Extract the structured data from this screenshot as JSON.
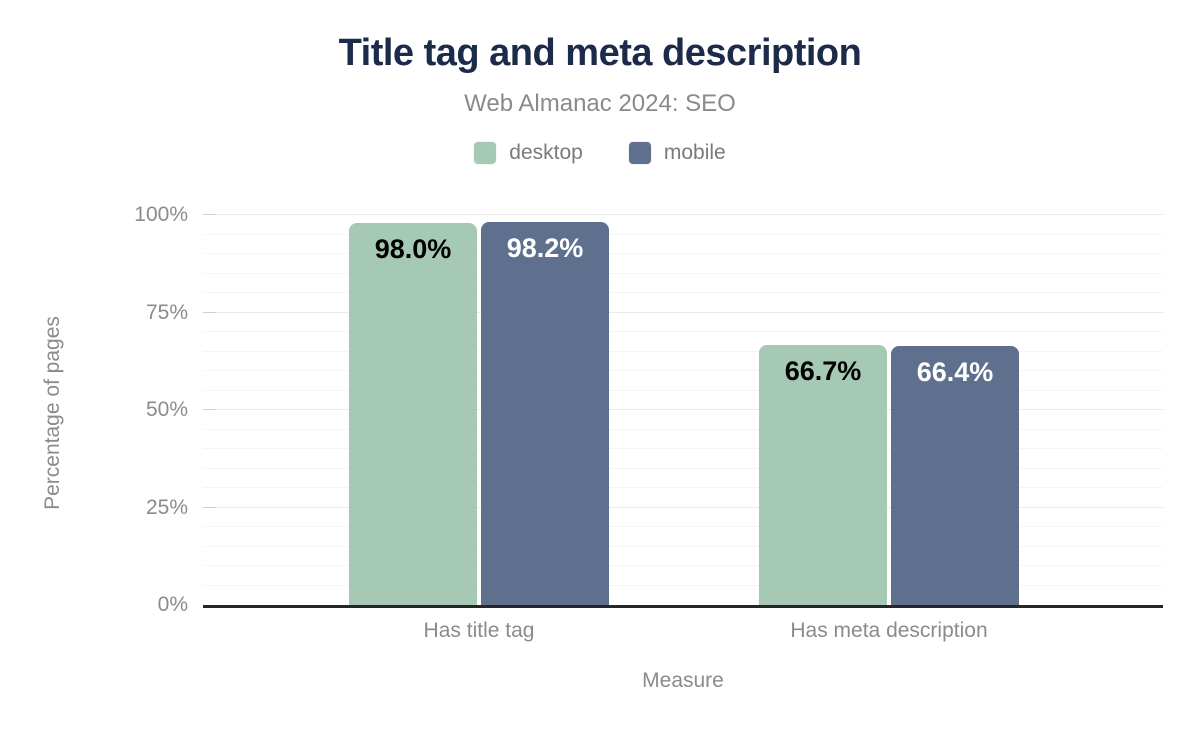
{
  "chart_data": {
    "type": "bar",
    "title": "Title tag and meta description",
    "subtitle": "Web Almanac 2024: SEO",
    "xlabel": "Measure",
    "ylabel": "Percentage of pages",
    "categories": [
      "Has title tag",
      "Has meta description"
    ],
    "series": [
      {
        "name": "desktop",
        "color": "#a5c9b5",
        "label_color": "#000000",
        "values": [
          98.0,
          66.7
        ],
        "value_labels": [
          "98.0%",
          "66.7%"
        ]
      },
      {
        "name": "mobile",
        "color": "#5e708e",
        "label_color": "#ffffff",
        "values": [
          98.2,
          66.4
        ],
        "value_labels": [
          "98.2%",
          "66.4%"
        ]
      }
    ],
    "ylim": [
      0,
      100
    ],
    "yticks": [
      {
        "value": 0,
        "label": "0%"
      },
      {
        "value": 25,
        "label": "25%"
      },
      {
        "value": 50,
        "label": "50%"
      },
      {
        "value": 75,
        "label": "75%"
      },
      {
        "value": 100,
        "label": "100%"
      }
    ],
    "y_minor_step": 5,
    "grid": "horizontal-minor-and-major",
    "legend_position": "top-center",
    "colors": {
      "title": "#1c2b4a",
      "axis_text": "#8b8b8b",
      "axis_line": "#26262a",
      "desktop": "#a5c9b5",
      "mobile": "#5e708e"
    }
  }
}
